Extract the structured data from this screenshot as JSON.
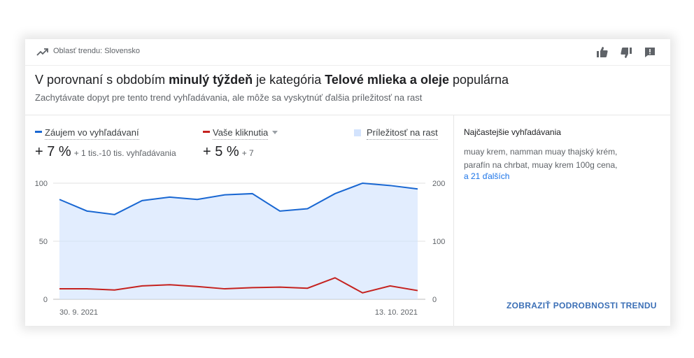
{
  "header": {
    "area_label": "Oblasť trendu: Slovensko",
    "trend_icon": "trending-up-icon",
    "feedback_icons": [
      "thumb-up-icon",
      "thumb-down-icon",
      "feedback-icon"
    ]
  },
  "headline": {
    "part1": "V porovnaní s obdobím ",
    "part2": "minulý týždeň",
    "part3": " je kategória ",
    "part4": "Telové mlieka a oleje",
    "part5": " populárna"
  },
  "subheadline": "Zachytávate dopyt pre tento trend vyhľadávania, ale môže sa vyskytnúť ďalšia príležitosť na rast",
  "legend": {
    "interest": {
      "label": "Záujem vo vyhľadávaní",
      "color": "#1967d2"
    },
    "clicks": {
      "label": "Vaše kliknutia",
      "color": "#c5221f"
    },
    "opportunity": {
      "label": "Príležitosť na rast",
      "color": "#d3e3fd"
    }
  },
  "stats": {
    "interest_big": "+ 7 %",
    "interest_small": "+ 1 tis.-10 tis. vyhľadávania",
    "clicks_big": "+ 5 %",
    "clicks_small": "+ 7"
  },
  "right_panel": {
    "title": "Najčastejšie vyhľadávania",
    "queries_line1": "muay krem, namman muay thajský krém,",
    "queries_line2": "parafín na chrbat, muay krem 100g cena,",
    "more_link": "a 21 ďalších",
    "details_button": "ZOBRAZIŤ PODROBNOSTI TRENDU"
  },
  "chart_data": {
    "type": "line",
    "x_labels": [
      "30. 9. 2021",
      "13. 10. 2021"
    ],
    "y_left_ticks": [
      "100",
      "50",
      "0"
    ],
    "y_right_ticks": [
      "200",
      "100",
      "0"
    ],
    "ylim_left": [
      0,
      100
    ],
    "ylim_right": [
      0,
      200
    ],
    "grid": true,
    "series": [
      {
        "name": "Záujem vo vyhľadávaní",
        "axis": "left",
        "values": [
          86,
          76,
          73,
          85,
          88,
          86,
          90,
          91,
          76,
          78,
          91,
          100,
          98,
          95
        ]
      },
      {
        "name": "Vaše kliknutia",
        "axis": "right",
        "values": [
          18,
          18,
          16,
          23,
          25,
          22,
          18,
          20,
          21,
          19,
          37,
          11,
          23,
          15
        ]
      }
    ],
    "area_fill_series": "Záujem vo vyhľadávaní"
  }
}
